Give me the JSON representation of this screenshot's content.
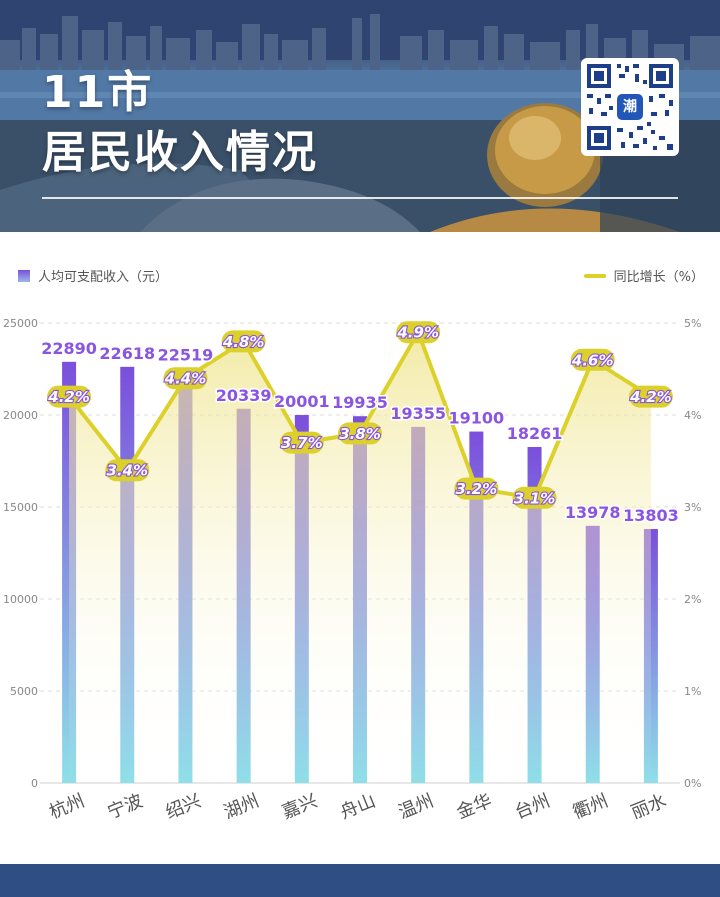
{
  "header": {
    "title_line1": "11市",
    "title_line2": "居民收入情况",
    "qr_badge": "潮"
  },
  "legend": {
    "bar_label": "人均可支配收入（元）",
    "line_label": "同比增长（%）"
  },
  "colors": {
    "bar_top": "#7b4fdc",
    "bar_bottom": "#8fdfe8",
    "line": "#dcd12a",
    "bar_label": "#8a55e0",
    "footer": "#2f4e83"
  },
  "chart_data": {
    "type": "bar",
    "categories": [
      "杭州",
      "宁波",
      "绍兴",
      "湖州",
      "嘉兴",
      "舟山",
      "温州",
      "金华",
      "台州",
      "衢州",
      "丽水"
    ],
    "series": [
      {
        "name": "人均可支配收入（元）",
        "type": "bar",
        "axis": "left",
        "values": [
          22890,
          22618,
          22519,
          20339,
          20001,
          19935,
          19355,
          19100,
          18261,
          13978,
          13803
        ]
      },
      {
        "name": "同比增长（%）",
        "type": "line",
        "axis": "right",
        "values": [
          4.2,
          3.4,
          4.4,
          4.8,
          3.7,
          3.8,
          4.9,
          3.2,
          3.1,
          4.6,
          4.2
        ],
        "labels": [
          "4.2%",
          "3.4%",
          "4.4%",
          "4.8%",
          "3.7%",
          "3.8%",
          "4.9%",
          "3.2%",
          "3.1%",
          "4.6%",
          "4.2%"
        ]
      }
    ],
    "y_left": {
      "range": [
        0,
        25000
      ],
      "ticks": [
        "0",
        "5000",
        "10000",
        "15000",
        "20000",
        "25000"
      ]
    },
    "y_right": {
      "range": [
        0,
        5
      ],
      "ticks": [
        "0%",
        "1%",
        "2%",
        "3%",
        "4%",
        "5%"
      ]
    },
    "grid": true,
    "legend_position": "top"
  }
}
